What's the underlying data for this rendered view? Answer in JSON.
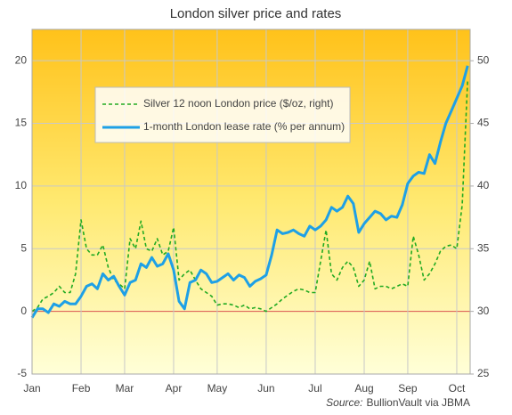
{
  "chart_data": {
    "type": "line",
    "title": "London silver price and rates",
    "source_label": "Source:",
    "source": "BullionVault via JBMA",
    "categories": [
      "Jan",
      null,
      null,
      null,
      null,
      null,
      null,
      null,
      null,
      "Feb",
      null,
      null,
      null,
      null,
      null,
      null,
      null,
      "Mar",
      null,
      null,
      null,
      null,
      null,
      null,
      null,
      null,
      "Apr",
      null,
      null,
      null,
      null,
      null,
      null,
      null,
      "May",
      null,
      null,
      null,
      null,
      null,
      null,
      null,
      null,
      "Jun",
      null,
      null,
      null,
      null,
      null,
      null,
      null,
      null,
      "Jul",
      null,
      null,
      null,
      null,
      null,
      null,
      null,
      null,
      "Aug",
      null,
      null,
      null,
      null,
      null,
      null,
      null,
      "Sep",
      null,
      null,
      null,
      null,
      null,
      null,
      null,
      null,
      "Oct",
      null,
      null
    ],
    "series": [
      {
        "name": "Silver 12 noon London price ($/oz, right)",
        "color": "#22aa22",
        "dash": "dashed",
        "axis": "y2",
        "values": [
          30.0,
          30.3,
          31.0,
          31.2,
          31.5,
          32.0,
          31.5,
          31.5,
          33.0,
          37.3,
          35.0,
          34.5,
          34.5,
          35.3,
          33.5,
          32.5,
          32.2,
          31.8,
          35.8,
          35.0,
          37.2,
          35.0,
          34.8,
          35.8,
          34.5,
          34.8,
          36.7,
          32.5,
          33.0,
          33.3,
          32.5,
          31.8,
          31.5,
          31.2,
          30.5,
          30.6,
          30.6,
          30.5,
          30.3,
          30.5,
          30.2,
          30.3,
          30.2,
          30.0,
          30.3,
          30.6,
          31.0,
          31.3,
          31.6,
          31.8,
          31.7,
          31.5,
          31.5,
          34.0,
          36.5,
          33.0,
          32.5,
          33.5,
          34.0,
          33.5,
          32.0,
          32.5,
          34.0,
          31.8,
          32.0,
          32.0,
          31.8,
          32.0,
          32.2,
          32.0,
          36.0,
          34.5,
          32.5,
          33.0,
          33.8,
          34.8,
          35.2,
          35.3,
          35.0,
          38.5,
          48.5
        ]
      },
      {
        "name": "1-month London lease rate (% per annum)",
        "color": "#1ea0e6",
        "dash": "solid",
        "values": [
          -0.5,
          0.2,
          0.2,
          -0.1,
          0.6,
          0.4,
          0.8,
          0.6,
          0.6,
          1.2,
          2.0,
          2.2,
          1.8,
          3.0,
          2.5,
          2.8,
          2.0,
          1.3,
          2.3,
          2.5,
          3.8,
          3.5,
          4.3,
          3.6,
          3.8,
          4.6,
          3.3,
          0.8,
          0.2,
          2.3,
          2.5,
          3.3,
          3.0,
          2.3,
          2.4,
          2.7,
          3.0,
          2.5,
          2.9,
          2.7,
          2.0,
          2.4,
          2.6,
          2.9,
          4.5,
          6.5,
          6.2,
          6.3,
          6.5,
          6.2,
          6.0,
          6.8,
          6.5,
          6.8,
          7.3,
          8.3,
          8.0,
          8.3,
          9.2,
          8.6,
          6.3,
          7.0,
          7.5,
          8.0,
          7.8,
          7.3,
          7.6,
          7.5,
          8.5,
          10.2,
          10.8,
          11.1,
          11.0,
          12.5,
          11.8,
          13.5,
          15.0,
          16.0,
          17.0,
          18.0,
          19.6
        ]
      }
    ],
    "ylim": [
      -5,
      22.5
    ],
    "yticks": [
      -5,
      0,
      5,
      10,
      15,
      20
    ],
    "y2lim": [
      25,
      52.5
    ],
    "y2ticks": [
      25,
      30,
      35,
      40,
      45,
      50
    ],
    "grid": true,
    "legend": "upper left"
  }
}
